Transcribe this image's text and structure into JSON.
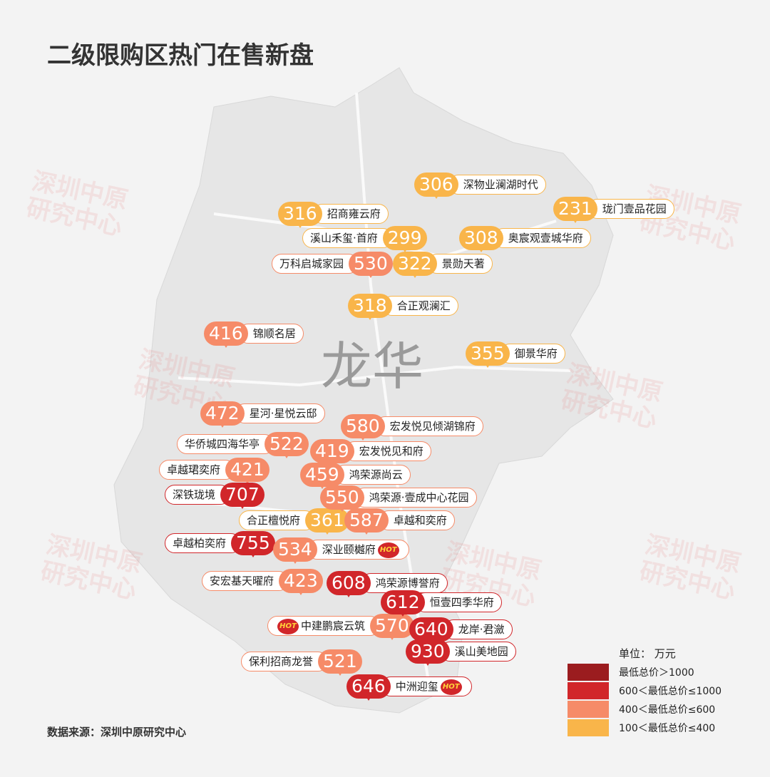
{
  "title": "二级限购区热门在售新盘",
  "district": "龙华",
  "watermark": "深圳中原研究中心",
  "hot_label": "HOT",
  "markers": [
    {
      "price": "306",
      "name": "深物业澜湖时代",
      "tier": 3
    },
    {
      "price": "231",
      "name": "珑门壹品花园",
      "tier": 3
    },
    {
      "price": "316",
      "name": "招商雍云府",
      "tier": 3
    },
    {
      "price": "299",
      "name": "溪山禾玺·首府",
      "tier": 3
    },
    {
      "price": "308",
      "name": "奥宸观壹城华府",
      "tier": 3
    },
    {
      "price": "530",
      "name": "万科启城家园",
      "tier": 2
    },
    {
      "price": "322",
      "name": "景勋天著",
      "tier": 3
    },
    {
      "price": "318",
      "name": "合正观澜汇",
      "tier": 3
    },
    {
      "price": "416",
      "name": "锦顺名居",
      "tier": 2
    },
    {
      "price": "355",
      "name": "御景华府",
      "tier": 3
    },
    {
      "price": "472",
      "name": "星河·星悦云邸",
      "tier": 2
    },
    {
      "price": "580",
      "name": "宏发悦见倾湖锦府",
      "tier": 2
    },
    {
      "price": "522",
      "name": "华侨城四海华亭",
      "tier": 2
    },
    {
      "price": "419",
      "name": "宏发悦见和府",
      "tier": 2
    },
    {
      "price": "421",
      "name": "卓越珺奕府",
      "tier": 2
    },
    {
      "price": "459",
      "name": "鸿荣源尚云",
      "tier": 2
    },
    {
      "price": "707",
      "name": "深铁珑境",
      "tier": 1
    },
    {
      "price": "550",
      "name": "鸿荣源·壹成中心花园",
      "tier": 2
    },
    {
      "price": "361",
      "name": "合正檀悦府",
      "tier": 3
    },
    {
      "price": "587",
      "name": "卓越和奕府",
      "tier": 2
    },
    {
      "price": "755",
      "name": "卓越柏奕府",
      "tier": 1
    },
    {
      "price": "534",
      "name": "深业颐樾府",
      "tier": 2,
      "hot": true
    },
    {
      "price": "423",
      "name": "安宏基天曜府",
      "tier": 2
    },
    {
      "price": "608",
      "name": "鸿荣源博誉府",
      "tier": 1
    },
    {
      "price": "612",
      "name": "恒壹四季华府",
      "tier": 1
    },
    {
      "price": "570",
      "name": "中建鹏宸云筑",
      "tier": 2,
      "hot": true
    },
    {
      "price": "640",
      "name": "龙岸·君瀲",
      "tier": 1
    },
    {
      "price": "930",
      "name": "溪山美地园",
      "tier": 1
    },
    {
      "price": "521",
      "name": "保利招商龙誉",
      "tier": 2
    },
    {
      "price": "646",
      "name": "中洲迎玺",
      "tier": 1,
      "hot": true
    }
  ],
  "legend": {
    "unit": "单位：  万元",
    "items": [
      {
        "label": "最低总价＞1000",
        "color": "#9b1c1f"
      },
      {
        "label": "600＜最低总价≤1000",
        "color": "#d1262a"
      },
      {
        "label": "400＜最低总价≤600",
        "color": "#f68b68"
      },
      {
        "label": "100＜最低总价≤400",
        "color": "#f9b54a"
      }
    ]
  },
  "source": "数据来源：深圳中原研究中心"
}
